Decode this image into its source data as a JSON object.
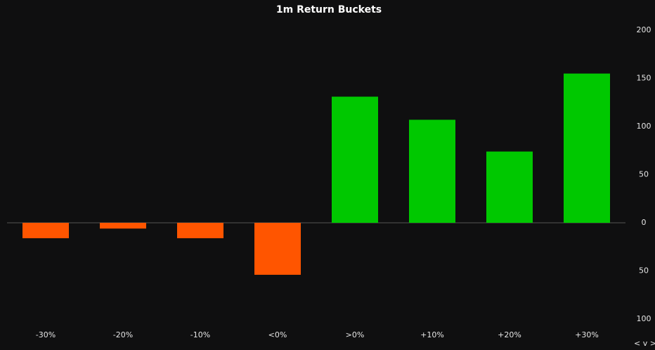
{
  "chart_data": {
    "type": "bar",
    "title": "1m Return Buckets",
    "categories": [
      "-30%",
      "-20%",
      "-10%",
      "<0%",
      ">0%",
      "+10%",
      "+20%",
      "+30%"
    ],
    "values": [
      -16,
      -6,
      -16,
      -54,
      131,
      107,
      74,
      155
    ],
    "colors": [
      "#ff5500",
      "#ff5500",
      "#ff5500",
      "#ff5500",
      "#00c800",
      "#00c800",
      "#00c800",
      "#00c800"
    ],
    "ylim": [
      -100,
      200
    ],
    "yticks": [
      {
        "value": -100,
        "label": "100"
      },
      {
        "value": -50,
        "label": "50"
      },
      0,
      50,
      100,
      150,
      200
    ],
    "y_axis_side": "right",
    "grid": false
  },
  "controls": "< v >"
}
